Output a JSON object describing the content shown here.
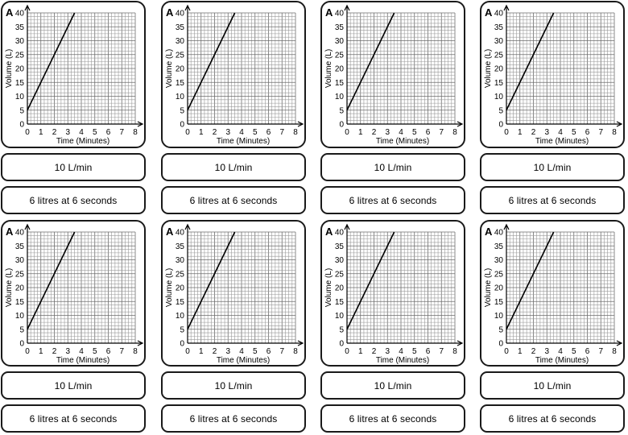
{
  "cards": [
    {
      "letter": "A",
      "rate_label": "10 L/min",
      "info_label": "6 litres at 6 seconds"
    },
    {
      "letter": "A",
      "rate_label": "10 L/min",
      "info_label": "6 litres at 6 seconds"
    },
    {
      "letter": "A",
      "rate_label": "10 L/min",
      "info_label": "6 litres at 6 seconds"
    },
    {
      "letter": "A",
      "rate_label": "10 L/min",
      "info_label": "6 litres at 6 seconds"
    },
    {
      "letter": "A",
      "rate_label": "10 L/min",
      "info_label": "6 litres at 6 seconds"
    },
    {
      "letter": "A",
      "rate_label": "10 L/min",
      "info_label": "6 litres at 6 seconds"
    },
    {
      "letter": "A",
      "rate_label": "10 L/min",
      "info_label": "6 litres at 6 seconds"
    },
    {
      "letter": "A",
      "rate_label": "10 L/min",
      "info_label": "6 litres at 6 seconds"
    }
  ],
  "chart_data": {
    "type": "line",
    "title": "",
    "xlabel": "Time (Minutes)",
    "ylabel": "Volume (L)",
    "xlim": [
      0,
      8
    ],
    "ylim": [
      0,
      40
    ],
    "x_ticks": [
      "0",
      "1",
      "2",
      "3",
      "4",
      "5",
      "6",
      "7",
      "8"
    ],
    "y_ticks": [
      "0",
      "5",
      "10",
      "15",
      "20",
      "25",
      "30",
      "35",
      "40"
    ],
    "grid": true,
    "series": [
      {
        "name": "Volume",
        "x": [
          0,
          3.5
        ],
        "y": [
          5,
          40
        ]
      }
    ]
  }
}
